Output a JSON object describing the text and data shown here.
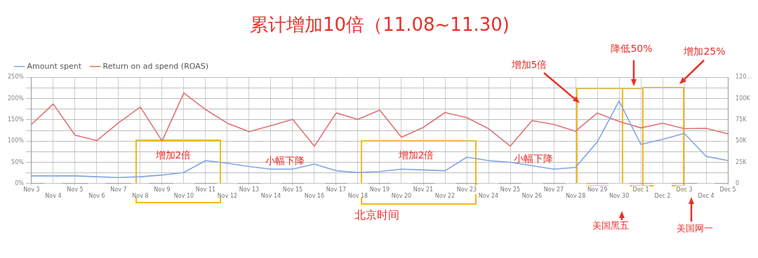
{
  "chart_data": {
    "type": "line",
    "title": "累计增加10倍（11.08~11.30)",
    "categories": [
      "Nov 3",
      "Nov 4",
      "Nov 5",
      "Nov 6",
      "Nov 7",
      "Nov 8",
      "Nov 9",
      "Nov 10",
      "Nov 11",
      "Nov 12",
      "Nov 13",
      "Nov 14",
      "Nov 15",
      "Nov 16",
      "Nov 17",
      "Nov 18",
      "Nov 19",
      "Nov 20",
      "Nov 21",
      "Nov 22",
      "Nov 23",
      "Nov 24",
      "Nov 25",
      "Nov 26",
      "Nov 27",
      "Nov 28",
      "Nov 29",
      "Nov 30",
      "Dec 1",
      "Dec 2",
      "Dec 3",
      "Dec 4",
      "Dec 5"
    ],
    "series": [
      {
        "name": "Amount spent",
        "color": "#7fa7e6",
        "axis": "y2",
        "values": [
          9,
          9,
          9,
          8,
          7,
          8,
          10,
          13,
          27,
          24,
          20,
          17,
          17,
          23,
          15,
          13,
          14,
          17,
          16,
          15,
          31,
          27,
          25,
          21,
          17,
          19,
          49,
          97,
          46,
          52,
          59,
          32,
          27
        ]
      },
      {
        "name": "Return on ad spend (ROAS)",
        "color": "#e07474",
        "values": [
          139,
          187,
          114,
          101,
          143,
          180,
          100,
          213,
          174,
          142,
          122,
          136,
          151,
          88,
          166,
          151,
          173,
          109,
          132,
          167,
          155,
          129,
          88,
          148,
          139,
          123,
          166,
          146,
          131,
          142,
          129,
          130,
          117
        ]
      }
    ],
    "ylim": [
      0,
      250
    ],
    "yticks": [
      {
        "value": 0,
        "label": "0%"
      },
      {
        "value": 25,
        "label": null
      },
      {
        "value": 50,
        "label": "50%"
      },
      {
        "value": 75,
        "label": null
      },
      {
        "value": 100,
        "label": "100%"
      },
      {
        "value": 125,
        "label": null
      },
      {
        "value": 150,
        "label": "150%"
      },
      {
        "value": 175,
        "label": null
      },
      {
        "value": 200,
        "label": "200%"
      },
      {
        "value": 225,
        "label": null
      },
      {
        "value": 250,
        "label": "250%"
      }
    ],
    "y2lim": [
      0,
      125
    ],
    "y2ticks": [
      {
        "value": 0,
        "label": "0"
      },
      {
        "value": 25,
        "label": "25K"
      },
      {
        "value": 50,
        "label": "50K"
      },
      {
        "value": 75,
        "label": "75K"
      },
      {
        "value": 100,
        "label": "100K"
      },
      {
        "value": 125,
        "label": "120..."
      }
    ],
    "grid": true,
    "legend": "top left",
    "marker": "none",
    "line_style": "solid",
    "annotations": [
      "增加2倍",
      "小幅下降",
      "增加2倍",
      "小幅下降",
      "增加5倍",
      "降低50%",
      "增加25%",
      "北京时间",
      "美国黑五",
      "美国网一"
    ]
  }
}
